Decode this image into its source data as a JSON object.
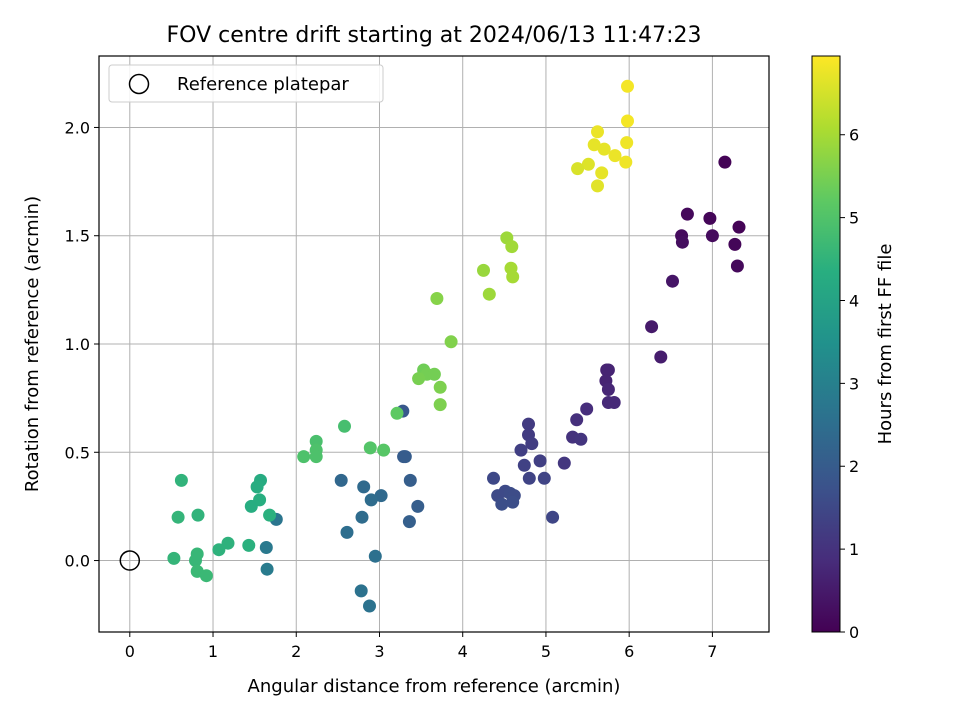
{
  "chart_data": {
    "type": "scatter",
    "title": "FOV centre drift starting at 2024/06/13 11:47:23",
    "xlabel": "Angular distance from reference (arcmin)",
    "ylabel": "Rotation from reference (arcmin)",
    "xlim": [
      -0.37,
      7.68
    ],
    "ylim": [
      -0.33,
      2.33
    ],
    "xticks": [
      0,
      1,
      2,
      3,
      4,
      5,
      6,
      7
    ],
    "yticks": [
      0.0,
      0.5,
      1.0,
      1.5,
      2.0
    ],
    "xtick_labels": [
      "0",
      "1",
      "2",
      "3",
      "4",
      "5",
      "6",
      "7"
    ],
    "ytick_labels": [
      "0.0",
      "0.5",
      "1.0",
      "1.5",
      "2.0"
    ],
    "grid": true,
    "legend": {
      "placement": "top-left",
      "entries": [
        "Reference platepar"
      ]
    },
    "reference_point": {
      "x": 0,
      "y": 0
    },
    "colorbar": {
      "label": "Hours from first FF file",
      "colormap": "viridis",
      "range": [
        0,
        6.95
      ],
      "ticks": [
        0,
        1,
        2,
        3,
        4,
        5,
        6
      ],
      "tick_labels": [
        "0",
        "1",
        "2",
        "3",
        "4",
        "5",
        "6"
      ]
    },
    "series": [
      {
        "values": [
          {
            "x": 7.15,
            "y": 1.84,
            "c": 0.05
          },
          {
            "x": 6.7,
            "y": 1.6,
            "c": 0.15
          },
          {
            "x": 6.97,
            "y": 1.58,
            "c": 0.1
          },
          {
            "x": 7.32,
            "y": 1.54,
            "c": 0.05
          },
          {
            "x": 7.0,
            "y": 1.5,
            "c": 0.2
          },
          {
            "x": 6.63,
            "y": 1.5,
            "c": 0.2
          },
          {
            "x": 6.64,
            "y": 1.47,
            "c": 0.25
          },
          {
            "x": 7.27,
            "y": 1.46,
            "c": 0.1
          },
          {
            "x": 7.3,
            "y": 1.36,
            "c": 0.15
          },
          {
            "x": 6.52,
            "y": 1.29,
            "c": 0.4
          },
          {
            "x": 6.27,
            "y": 1.08,
            "c": 0.5
          },
          {
            "x": 6.38,
            "y": 0.94,
            "c": 0.55
          },
          {
            "x": 5.73,
            "y": 0.88,
            "c": 0.65
          },
          {
            "x": 5.75,
            "y": 0.88,
            "c": 0.7
          },
          {
            "x": 5.72,
            "y": 0.83,
            "c": 0.7
          },
          {
            "x": 5.75,
            "y": 0.79,
            "c": 0.75
          },
          {
            "x": 5.75,
            "y": 0.73,
            "c": 0.8
          },
          {
            "x": 5.82,
            "y": 0.73,
            "c": 0.8
          },
          {
            "x": 5.49,
            "y": 0.7,
            "c": 0.9
          },
          {
            "x": 5.37,
            "y": 0.65,
            "c": 0.95
          },
          {
            "x": 5.32,
            "y": 0.57,
            "c": 1.0
          },
          {
            "x": 5.42,
            "y": 0.56,
            "c": 1.05
          },
          {
            "x": 5.22,
            "y": 0.45,
            "c": 1.1
          },
          {
            "x": 4.79,
            "y": 0.63,
            "c": 1.2
          },
          {
            "x": 4.79,
            "y": 0.58,
            "c": 1.2
          },
          {
            "x": 4.83,
            "y": 0.54,
            "c": 1.25
          },
          {
            "x": 4.7,
            "y": 0.51,
            "c": 1.3
          },
          {
            "x": 4.93,
            "y": 0.46,
            "c": 1.3
          },
          {
            "x": 4.74,
            "y": 0.44,
            "c": 1.35
          },
          {
            "x": 4.8,
            "y": 0.38,
            "c": 1.4
          },
          {
            "x": 4.98,
            "y": 0.38,
            "c": 1.4
          },
          {
            "x": 4.37,
            "y": 0.38,
            "c": 1.5
          },
          {
            "x": 4.42,
            "y": 0.3,
            "c": 1.55
          },
          {
            "x": 4.51,
            "y": 0.32,
            "c": 1.55
          },
          {
            "x": 4.57,
            "y": 0.31,
            "c": 1.6
          },
          {
            "x": 4.62,
            "y": 0.3,
            "c": 1.6
          },
          {
            "x": 4.47,
            "y": 0.26,
            "c": 1.65
          },
          {
            "x": 4.6,
            "y": 0.27,
            "c": 1.65
          },
          {
            "x": 5.08,
            "y": 0.2,
            "c": 1.45
          },
          {
            "x": 3.28,
            "y": 0.69,
            "c": 1.9
          },
          {
            "x": 3.29,
            "y": 0.48,
            "c": 2.0
          },
          {
            "x": 3.31,
            "y": 0.48,
            "c": 2.0
          },
          {
            "x": 3.37,
            "y": 0.37,
            "c": 2.05
          },
          {
            "x": 3.46,
            "y": 0.25,
            "c": 2.05
          },
          {
            "x": 3.36,
            "y": 0.18,
            "c": 2.1
          },
          {
            "x": 2.54,
            "y": 0.37,
            "c": 2.3
          },
          {
            "x": 2.81,
            "y": 0.34,
            "c": 2.4
          },
          {
            "x": 3.02,
            "y": 0.3,
            "c": 2.35
          },
          {
            "x": 2.9,
            "y": 0.28,
            "c": 2.45
          },
          {
            "x": 2.79,
            "y": 0.2,
            "c": 2.45
          },
          {
            "x": 2.61,
            "y": 0.13,
            "c": 2.5
          },
          {
            "x": 2.95,
            "y": 0.02,
            "c": 2.55
          },
          {
            "x": 2.78,
            "y": -0.14,
            "c": 2.6
          },
          {
            "x": 2.88,
            "y": -0.21,
            "c": 2.6
          },
          {
            "x": 1.76,
            "y": 0.19,
            "c": 2.7
          },
          {
            "x": 1.64,
            "y": 0.06,
            "c": 2.8
          },
          {
            "x": 1.65,
            "y": -0.04,
            "c": 2.85
          },
          {
            "x": 1.57,
            "y": 0.37,
            "c": 4.25
          },
          {
            "x": 1.53,
            "y": 0.34,
            "c": 4.3
          },
          {
            "x": 1.56,
            "y": 0.28,
            "c": 4.35
          },
          {
            "x": 1.46,
            "y": 0.25,
            "c": 4.3
          },
          {
            "x": 1.68,
            "y": 0.21,
            "c": 4.4
          },
          {
            "x": 1.43,
            "y": 0.07,
            "c": 4.4
          },
          {
            "x": 1.18,
            "y": 0.08,
            "c": 4.45
          },
          {
            "x": 1.07,
            "y": 0.05,
            "c": 4.45
          },
          {
            "x": 0.62,
            "y": 0.37,
            "c": 4.5
          },
          {
            "x": 0.58,
            "y": 0.2,
            "c": 4.55
          },
          {
            "x": 0.82,
            "y": 0.21,
            "c": 4.5
          },
          {
            "x": 0.53,
            "y": 0.01,
            "c": 4.55
          },
          {
            "x": 0.81,
            "y": 0.03,
            "c": 4.6
          },
          {
            "x": 0.79,
            "y": 0.0,
            "c": 4.6
          },
          {
            "x": 0.81,
            "y": -0.05,
            "c": 4.65
          },
          {
            "x": 0.92,
            "y": -0.07,
            "c": 4.65
          },
          {
            "x": 2.58,
            "y": 0.62,
            "c": 4.85
          },
          {
            "x": 2.24,
            "y": 0.55,
            "c": 4.9
          },
          {
            "x": 2.24,
            "y": 0.51,
            "c": 4.95
          },
          {
            "x": 2.09,
            "y": 0.48,
            "c": 4.95
          },
          {
            "x": 2.24,
            "y": 0.48,
            "c": 4.95
          },
          {
            "x": 2.89,
            "y": 0.52,
            "c": 5.05
          },
          {
            "x": 3.05,
            "y": 0.51,
            "c": 5.1
          },
          {
            "x": 3.21,
            "y": 0.68,
            "c": 5.2
          },
          {
            "x": 3.53,
            "y": 0.88,
            "c": 5.4
          },
          {
            "x": 3.57,
            "y": 0.86,
            "c": 5.45
          },
          {
            "x": 3.66,
            "y": 0.86,
            "c": 5.45
          },
          {
            "x": 3.47,
            "y": 0.84,
            "c": 5.5
          },
          {
            "x": 3.73,
            "y": 0.8,
            "c": 5.55
          },
          {
            "x": 3.73,
            "y": 0.72,
            "c": 5.55
          },
          {
            "x": 3.86,
            "y": 1.01,
            "c": 5.6
          },
          {
            "x": 3.69,
            "y": 1.21,
            "c": 5.65
          },
          {
            "x": 4.25,
            "y": 1.34,
            "c": 5.85
          },
          {
            "x": 4.32,
            "y": 1.23,
            "c": 5.9
          },
          {
            "x": 4.53,
            "y": 1.49,
            "c": 5.9
          },
          {
            "x": 4.59,
            "y": 1.45,
            "c": 5.95
          },
          {
            "x": 4.58,
            "y": 1.35,
            "c": 6.0
          },
          {
            "x": 4.6,
            "y": 1.31,
            "c": 6.0
          },
          {
            "x": 5.98,
            "y": 2.19,
            "c": 6.85
          },
          {
            "x": 5.98,
            "y": 2.03,
            "c": 6.85
          },
          {
            "x": 5.62,
            "y": 1.98,
            "c": 6.75
          },
          {
            "x": 5.97,
            "y": 1.93,
            "c": 6.8
          },
          {
            "x": 5.58,
            "y": 1.92,
            "c": 6.7
          },
          {
            "x": 5.7,
            "y": 1.9,
            "c": 6.7
          },
          {
            "x": 5.83,
            "y": 1.87,
            "c": 6.75
          },
          {
            "x": 5.96,
            "y": 1.84,
            "c": 6.8
          },
          {
            "x": 5.51,
            "y": 1.83,
            "c": 6.6
          },
          {
            "x": 5.38,
            "y": 1.81,
            "c": 6.55
          },
          {
            "x": 5.67,
            "y": 1.79,
            "c": 6.7
          },
          {
            "x": 5.62,
            "y": 1.73,
            "c": 6.65
          }
        ]
      }
    ]
  }
}
